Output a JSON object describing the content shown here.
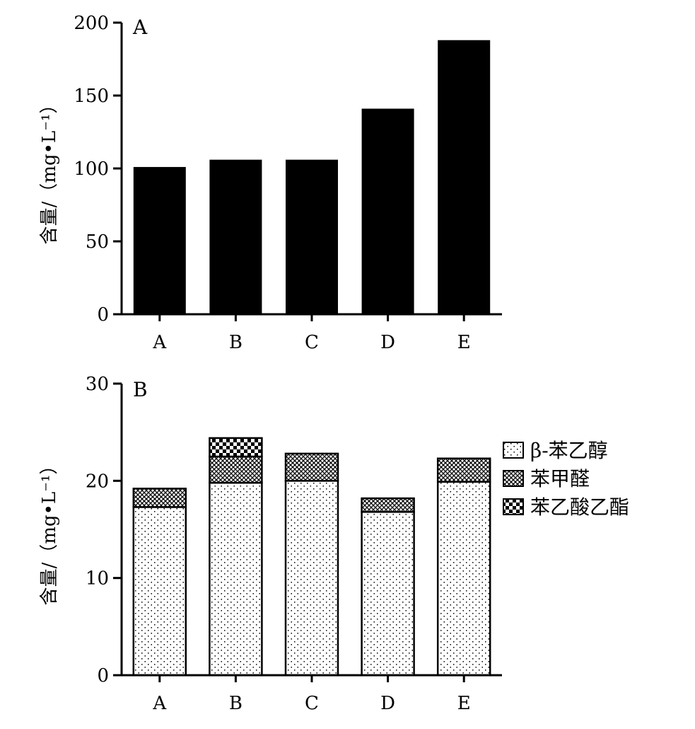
{
  "chart_data": [
    {
      "panel_label": "A",
      "type": "bar",
      "categories": [
        "A",
        "B",
        "C",
        "D",
        "E"
      ],
      "values": [
        101,
        106,
        106,
        141,
        188
      ],
      "ylabel": "含量/（mg•L⁻¹）",
      "ylim": [
        0,
        200
      ],
      "yticks": [
        0,
        50,
        100,
        150,
        200
      ],
      "grid": false,
      "colors": {
        "bar": "#000000"
      }
    },
    {
      "panel_label": "B",
      "type": "bar",
      "stacked": true,
      "categories": [
        "A",
        "B",
        "C",
        "D",
        "E"
      ],
      "series": [
        {
          "name": "β-苯乙醇",
          "pattern": "dots",
          "values": [
            17.3,
            19.8,
            20.0,
            16.8,
            19.9
          ]
        },
        {
          "name": "苯甲醛",
          "pattern": "crosshatch",
          "values": [
            1.9,
            2.7,
            2.8,
            1.4,
            2.4
          ]
        },
        {
          "name": "苯乙酸乙酯",
          "pattern": "checker",
          "values": [
            0,
            1.9,
            0,
            0,
            0
          ]
        }
      ],
      "ylabel": "含量/（mg•L⁻¹）",
      "ylim": [
        0,
        30
      ],
      "yticks": [
        0,
        10,
        20,
        30
      ],
      "grid": false,
      "legend_position": "right"
    }
  ]
}
